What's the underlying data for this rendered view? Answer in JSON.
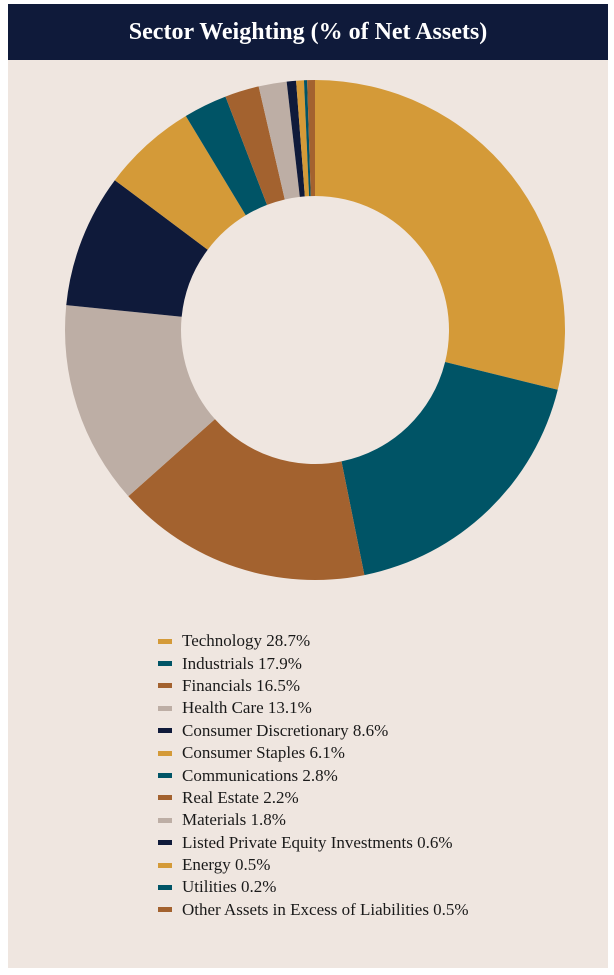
{
  "header": {
    "title": "Sector Weighting (% of Net Assets)"
  },
  "chart_data": {
    "type": "pie",
    "donut": true,
    "title": "Sector Weighting (% of Net Assets)",
    "legend_position": "bottom",
    "slices": [
      {
        "label": "Technology 28.7%",
        "name": "Technology",
        "value": 28.7,
        "color": "#d49a38"
      },
      {
        "label": "Industrials 17.9%",
        "name": "Industrials",
        "value": 17.9,
        "color": "#005466"
      },
      {
        "label": "Financials 16.5%",
        "name": "Financials",
        "value": 16.5,
        "color": "#a3622f"
      },
      {
        "label": "Health Care 13.1%",
        "name": "Health Care",
        "value": 13.1,
        "color": "#bdaea5"
      },
      {
        "label": "Consumer Discretionary 8.6%",
        "name": "Consumer Discretionary",
        "value": 8.6,
        "color": "#0f1a3a"
      },
      {
        "label": "Consumer Staples 6.1%",
        "name": "Consumer Staples",
        "value": 6.1,
        "color": "#d49a38"
      },
      {
        "label": "Communications 2.8%",
        "name": "Communications",
        "value": 2.8,
        "color": "#005466"
      },
      {
        "label": "Real Estate 2.2%",
        "name": "Real Estate",
        "value": 2.2,
        "color": "#a3622f"
      },
      {
        "label": "Materials 1.8%",
        "name": "Materials",
        "value": 1.8,
        "color": "#bdaea5"
      },
      {
        "label": "Listed Private Equity Investments 0.6%",
        "name": "Listed Private Equity Investments",
        "value": 0.6,
        "color": "#0f1a3a"
      },
      {
        "label": "Energy 0.5%",
        "name": "Energy",
        "value": 0.5,
        "color": "#d49a38"
      },
      {
        "label": "Utilities 0.2%",
        "name": "Utilities",
        "value": 0.2,
        "color": "#005466"
      },
      {
        "label": "Other Assets in Excess of Liabilities 0.5%",
        "name": "Other Assets in Excess of Liabilities",
        "value": 0.5,
        "color": "#a3622f"
      }
    ]
  }
}
